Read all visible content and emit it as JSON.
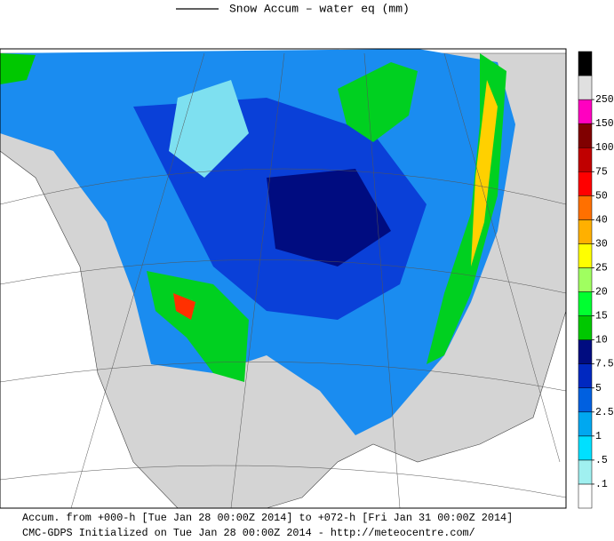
{
  "legend": {
    "title": "Snow Accum – water eq (mm)"
  },
  "colorbar": {
    "colors": [
      "#ffffff",
      "#a0f0f0",
      "#00e0ff",
      "#00a8f0",
      "#0060e0",
      "#0028c0",
      "#000c80",
      "#00c800",
      "#00ff30",
      "#a0ff60",
      "#ffff00",
      "#ffb000",
      "#ff7000",
      "#ff0000",
      "#c00000",
      "#800000",
      "#ff00c0",
      "#e0e0e0",
      "#000000"
    ],
    "levels": [
      {
        "value": 0.1,
        "label": ".1"
      },
      {
        "value": 0.5,
        "label": ".5"
      },
      1,
      2.5,
      5,
      7.5,
      10,
      15,
      20,
      25,
      30,
      40,
      50,
      75,
      100,
      150,
      250
    ]
  },
  "footer": {
    "line1": "Accum. from +000-h [Tue Jan 28 00:00Z 2014] to +072-h [Fri Jan 31 00:00Z 2014]",
    "line2": "CMC-GDPS Initialized on Tue Jan 28 00:00Z 2014 - http://meteocentre.com/"
  }
}
